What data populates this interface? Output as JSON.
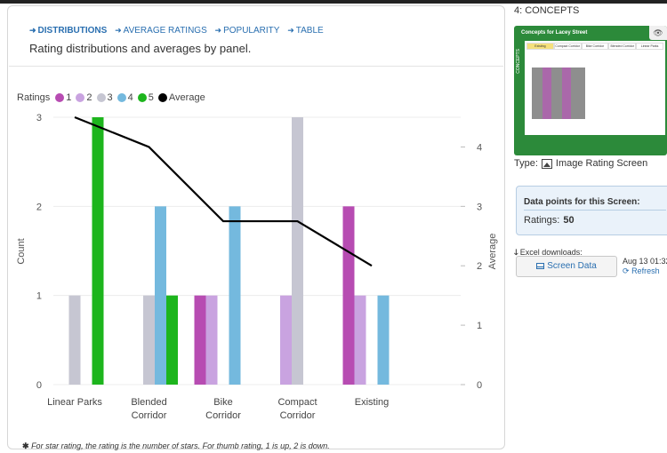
{
  "tabs": [
    {
      "label": "DISTRIBUTIONS",
      "active": true
    },
    {
      "label": "AVERAGE RATINGS",
      "active": false
    },
    {
      "label": "POPULARITY",
      "active": false
    },
    {
      "label": "TABLE",
      "active": false
    }
  ],
  "subtitle": "Rating distributions and averages by panel.",
  "legend": {
    "title": "Ratings",
    "items": [
      {
        "label": "1",
        "color": "#b74cb2"
      },
      {
        "label": "2",
        "color": "#c9a3e0"
      },
      {
        "label": "3",
        "color": "#c6c6d2"
      },
      {
        "label": "4",
        "color": "#74b9de"
      },
      {
        "label": "5",
        "color": "#1db51d"
      },
      {
        "label": "Average",
        "color": "#000000"
      }
    ]
  },
  "chart_data": {
    "type": "bar",
    "categories": [
      "Linear Parks",
      "Blended Corridor",
      "Bike Corridor",
      "Compact Corridor",
      "Existing"
    ],
    "series": [
      {
        "name": "1",
        "color": "#b74cb2",
        "values": [
          0,
          0,
          1,
          0,
          2
        ]
      },
      {
        "name": "2",
        "color": "#c9a3e0",
        "values": [
          0,
          0,
          1,
          1,
          1
        ]
      },
      {
        "name": "3",
        "color": "#c6c6d2",
        "values": [
          1,
          1,
          0,
          3,
          0
        ]
      },
      {
        "name": "4",
        "color": "#74b9de",
        "values": [
          0,
          2,
          2,
          0,
          1
        ]
      },
      {
        "name": "5",
        "color": "#1db51d",
        "values": [
          3,
          1,
          0,
          0,
          0
        ]
      }
    ],
    "line_series": {
      "name": "Average",
      "color": "#000000",
      "axis": "right",
      "values": [
        4.5,
        4.0,
        2.75,
        2.75,
        2.0
      ]
    },
    "ylabel": "Count",
    "ylim": [
      0,
      3
    ],
    "yticks": [
      "0",
      "1",
      "2",
      "3"
    ],
    "y2label": "Average",
    "y2lim": [
      0,
      4.5
    ],
    "y2ticks": [
      "0",
      "1",
      "2",
      "3",
      "4"
    ],
    "grid": true
  },
  "footnote": {
    "star": "✱",
    "text": "For star rating, the rating is the number of stars. For thumb rating, 1 is up, 2 is down."
  },
  "sidebar": {
    "concept_title": "4: CONCEPTS",
    "thumbnail": {
      "header": "Concepts for Lacey Street",
      "side_label": "CONCEPTS",
      "tabs": [
        "Existing",
        "Compact Corridor",
        "Bike Corridor",
        "Blended Corridor",
        "Linear Parks"
      ]
    },
    "type_label": "Type:",
    "type_value": "Image Rating Screen",
    "data_points_title": "Data points for this Screen:",
    "ratings_label": "Ratings:",
    "ratings_value": "50",
    "excel_label": "Excel downloads:",
    "screen_data_button": "Screen Data",
    "download_date": "Aug 13 01:32",
    "refresh_label": "Refresh"
  }
}
